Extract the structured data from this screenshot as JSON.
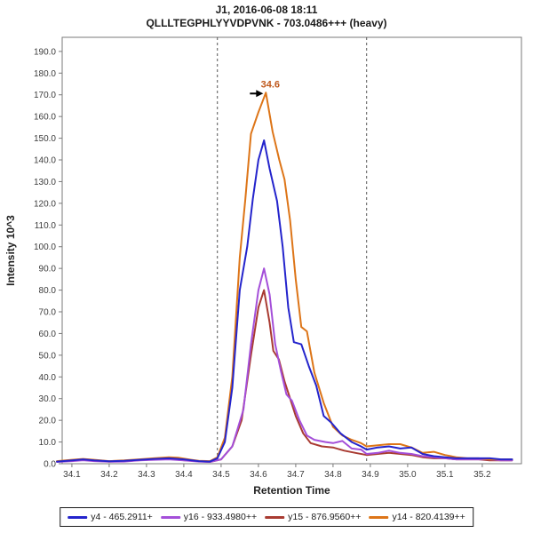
{
  "chart_data": {
    "type": "line",
    "title": "J1, 2016-06-08 18:11",
    "subtitle": "QLLLTEGPHLYYVDPVNK - 703.0486+++ (heavy)",
    "xlabel": "Retention Time",
    "ylabel": "Intensity 10^3",
    "xlim": [
      34.074,
      35.305
    ],
    "ylim": [
      0,
      196.5
    ],
    "grid": false,
    "legend_position": "bottom",
    "x_ticks": [
      34.1,
      34.2,
      34.3,
      34.4,
      34.5,
      34.6,
      34.7,
      34.8,
      34.9,
      35.0,
      35.1,
      35.2
    ],
    "x_tick_labels": [
      "34.1",
      "34.2",
      "34.3",
      "34.4",
      "34.5",
      "34.6",
      "34.7",
      "34.8",
      "34.9",
      "35.0",
      "35.1",
      "35.2"
    ],
    "y_ticks": [
      0,
      10,
      20,
      30,
      40,
      50,
      60,
      70,
      80,
      90,
      100,
      110,
      120,
      130,
      140,
      150,
      160,
      170,
      180,
      190
    ],
    "y_tick_labels": [
      "0.0",
      "10.0",
      "20.0",
      "30.0",
      "40.0",
      "50.0",
      "60.0",
      "70.0",
      "80.0",
      "90.0",
      "100.0",
      "110.0",
      "120.0",
      "130.0",
      "140.0",
      "150.0",
      "160.0",
      "170.0",
      "180.0",
      "190.0"
    ],
    "integration_boundaries": [
      34.49,
      34.89
    ],
    "boundary_color": "#555555",
    "peak_annotation": {
      "label": "34.6",
      "x": 34.62,
      "y": 171,
      "text_color": "#c05a1e",
      "arrow_color": "#000000"
    },
    "frame_color": "#7a7a7a",
    "series": [
      {
        "id": "y4",
        "name": "y4 - 465.2911+",
        "color": "#2424cc",
        "points": [
          [
            34.06,
            1
          ],
          [
            34.1,
            1.5
          ],
          [
            34.13,
            2
          ],
          [
            34.16,
            1.5
          ],
          [
            34.2,
            1.1
          ],
          [
            34.24,
            1.3
          ],
          [
            34.28,
            1.8
          ],
          [
            34.32,
            2.2
          ],
          [
            34.36,
            2.5
          ],
          [
            34.4,
            2
          ],
          [
            34.44,
            1.2
          ],
          [
            34.47,
            1
          ],
          [
            34.49,
            2.5
          ],
          [
            34.51,
            10
          ],
          [
            34.53,
            35
          ],
          [
            34.55,
            80
          ],
          [
            34.57,
            100
          ],
          [
            34.585,
            122
          ],
          [
            34.6,
            140
          ],
          [
            34.615,
            149
          ],
          [
            34.63,
            136
          ],
          [
            34.65,
            121
          ],
          [
            34.665,
            100
          ],
          [
            34.68,
            72
          ],
          [
            34.695,
            56
          ],
          [
            34.715,
            55
          ],
          [
            34.735,
            45
          ],
          [
            34.755,
            36
          ],
          [
            34.775,
            22
          ],
          [
            34.795,
            19
          ],
          [
            34.82,
            14
          ],
          [
            34.85,
            10
          ],
          [
            34.875,
            8
          ],
          [
            34.89,
            6.5
          ],
          [
            34.92,
            7.5
          ],
          [
            34.95,
            8
          ],
          [
            34.98,
            7
          ],
          [
            35.01,
            7.5
          ],
          [
            35.04,
            4.5
          ],
          [
            35.07,
            3.5
          ],
          [
            35.1,
            3
          ],
          [
            35.13,
            2.5
          ],
          [
            35.16,
            2.5
          ],
          [
            35.19,
            2.5
          ],
          [
            35.22,
            2.5
          ],
          [
            35.25,
            2
          ],
          [
            35.28,
            2
          ]
        ]
      },
      {
        "id": "y16",
        "name": "y16 - 933.4980++",
        "color": "#a44fd9",
        "points": [
          [
            34.06,
            0.8
          ],
          [
            34.1,
            1.2
          ],
          [
            34.13,
            1.6
          ],
          [
            34.16,
            1.2
          ],
          [
            34.2,
            0.9
          ],
          [
            34.24,
            1
          ],
          [
            34.28,
            1.5
          ],
          [
            34.32,
            1.8
          ],
          [
            34.36,
            2
          ],
          [
            34.4,
            1.5
          ],
          [
            34.44,
            1
          ],
          [
            34.47,
            0.8
          ],
          [
            34.5,
            2
          ],
          [
            34.53,
            8
          ],
          [
            34.56,
            25
          ],
          [
            34.58,
            55
          ],
          [
            34.6,
            80
          ],
          [
            34.615,
            90
          ],
          [
            34.63,
            78
          ],
          [
            34.645,
            55
          ],
          [
            34.66,
            43
          ],
          [
            34.675,
            32
          ],
          [
            34.69,
            29
          ],
          [
            34.71,
            20
          ],
          [
            34.73,
            13
          ],
          [
            34.75,
            11
          ],
          [
            34.78,
            10
          ],
          [
            34.8,
            9.5
          ],
          [
            34.825,
            10.5
          ],
          [
            34.85,
            7
          ],
          [
            34.875,
            6.5
          ],
          [
            34.89,
            4.5
          ],
          [
            34.92,
            5
          ],
          [
            34.95,
            6
          ],
          [
            34.98,
            5
          ],
          [
            35.01,
            4.5
          ],
          [
            35.04,
            3.5
          ],
          [
            35.07,
            3
          ],
          [
            35.1,
            2.5
          ],
          [
            35.13,
            2
          ],
          [
            35.16,
            2
          ],
          [
            35.19,
            2
          ],
          [
            35.22,
            2
          ],
          [
            35.25,
            1.5
          ],
          [
            35.28,
            1.5
          ]
        ]
      },
      {
        "id": "y15",
        "name": "y15 - 876.9560++",
        "color": "#a93b32",
        "points": [
          [
            34.06,
            0.9
          ],
          [
            34.1,
            1.4
          ],
          [
            34.13,
            1.8
          ],
          [
            34.16,
            1.4
          ],
          [
            34.2,
            1
          ],
          [
            34.24,
            1.2
          ],
          [
            34.28,
            1.6
          ],
          [
            34.32,
            2
          ],
          [
            34.36,
            2.2
          ],
          [
            34.4,
            1.6
          ],
          [
            34.44,
            1.1
          ],
          [
            34.47,
            0.8
          ],
          [
            34.5,
            2
          ],
          [
            34.53,
            8
          ],
          [
            34.555,
            20
          ],
          [
            34.58,
            50
          ],
          [
            34.6,
            72
          ],
          [
            34.615,
            80
          ],
          [
            34.63,
            65
          ],
          [
            34.64,
            52
          ],
          [
            34.655,
            48
          ],
          [
            34.67,
            38
          ],
          [
            34.685,
            30
          ],
          [
            34.7,
            22
          ],
          [
            34.72,
            14
          ],
          [
            34.74,
            9.5
          ],
          [
            34.77,
            8
          ],
          [
            34.8,
            7.5
          ],
          [
            34.83,
            6
          ],
          [
            34.86,
            5
          ],
          [
            34.89,
            4
          ],
          [
            34.92,
            4.5
          ],
          [
            34.95,
            5
          ],
          [
            34.98,
            4.5
          ],
          [
            35.01,
            4
          ],
          [
            35.04,
            3
          ],
          [
            35.07,
            2.5
          ],
          [
            35.1,
            2.5
          ],
          [
            35.13,
            2
          ],
          [
            35.16,
            2
          ],
          [
            35.19,
            2
          ],
          [
            35.22,
            1.5
          ],
          [
            35.25,
            1.5
          ],
          [
            35.28,
            1.5
          ]
        ]
      },
      {
        "id": "y14",
        "name": "y14 - 820.4139++",
        "color": "#dd7518",
        "points": [
          [
            34.06,
            1.2
          ],
          [
            34.1,
            1.8
          ],
          [
            34.13,
            2.2
          ],
          [
            34.16,
            1.8
          ],
          [
            34.2,
            1.2
          ],
          [
            34.24,
            1.5
          ],
          [
            34.28,
            2
          ],
          [
            34.32,
            2.5
          ],
          [
            34.36,
            3
          ],
          [
            34.385,
            2.8
          ],
          [
            34.42,
            1.8
          ],
          [
            34.44,
            1.3
          ],
          [
            34.47,
            1.2
          ],
          [
            34.49,
            3
          ],
          [
            34.51,
            12
          ],
          [
            34.53,
            40
          ],
          [
            34.55,
            95
          ],
          [
            34.565,
            122
          ],
          [
            34.58,
            152
          ],
          [
            34.6,
            162
          ],
          [
            34.62,
            171
          ],
          [
            34.638,
            153
          ],
          [
            34.656,
            140
          ],
          [
            34.67,
            131
          ],
          [
            34.685,
            112
          ],
          [
            34.7,
            85
          ],
          [
            34.715,
            63
          ],
          [
            34.73,
            61
          ],
          [
            34.75,
            42
          ],
          [
            34.775,
            28
          ],
          [
            34.8,
            17
          ],
          [
            34.825,
            13
          ],
          [
            34.85,
            11
          ],
          [
            34.875,
            9.5
          ],
          [
            34.89,
            8
          ],
          [
            34.92,
            8.5
          ],
          [
            34.95,
            9
          ],
          [
            34.98,
            9
          ],
          [
            35.01,
            7.5
          ],
          [
            35.04,
            5
          ],
          [
            35.07,
            5.5
          ],
          [
            35.1,
            4
          ],
          [
            35.13,
            3
          ],
          [
            35.16,
            2.5
          ],
          [
            35.19,
            2.5
          ],
          [
            35.22,
            2
          ],
          [
            35.25,
            2
          ],
          [
            35.28,
            2
          ]
        ]
      }
    ],
    "z_order": [
      "y15",
      "y16",
      "y14",
      "y4"
    ]
  }
}
